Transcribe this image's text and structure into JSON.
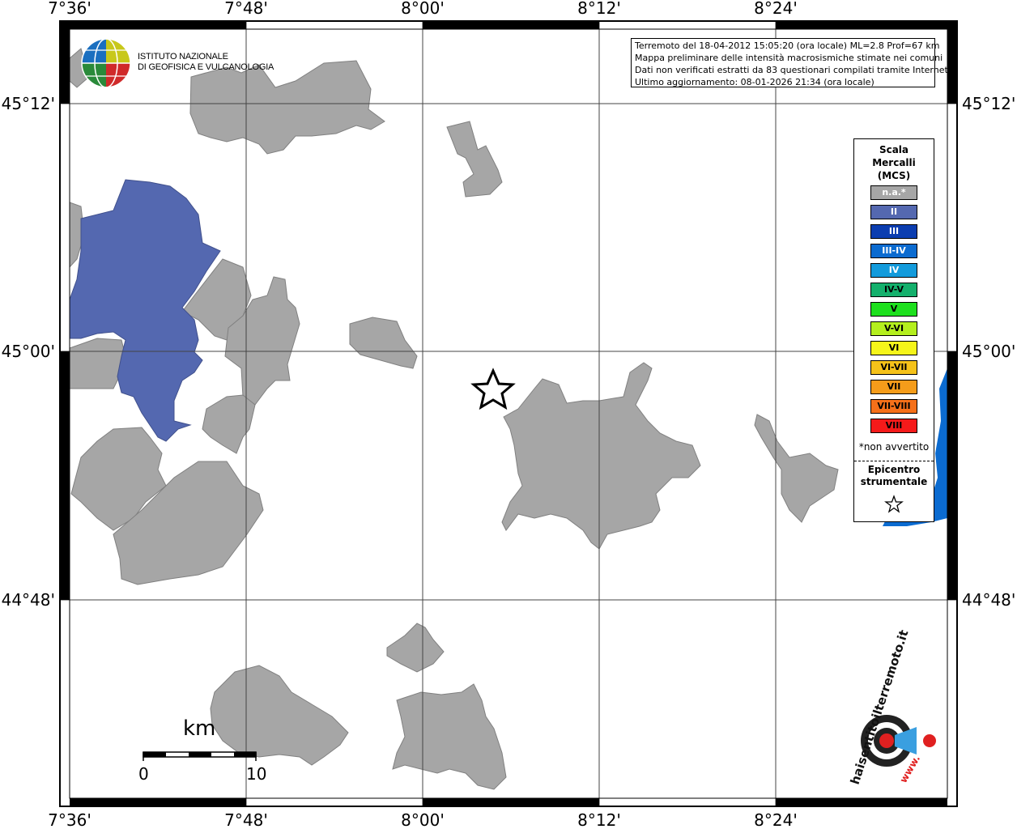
{
  "ticks": {
    "lon": [
      "7°36'",
      "7°48'",
      "8°00'",
      "8°12'",
      "8°24'"
    ],
    "lat": [
      "45°12'",
      "45°00'",
      "44°48'"
    ]
  },
  "info": {
    "line1": "Terremoto del 18-04-2012 15:05:20 (ora locale) ML=2.8 Prof=67 km",
    "line2": "Mappa preliminare delle intensità macrosismiche stimate nei comuni",
    "line3": "Dati non verificati estratti da 83 questionari compilati tramite Internet.",
    "line4": "Ultimo aggiornamento: 08-01-2026 21:34 (ora locale)"
  },
  "logo": {
    "ingv_line1": "ISTITUTO NAZIONALE",
    "ingv_line2": "DI GEOFISICA E VULCANOLOGIA",
    "hsit_text": "haisentitoilterremoto.it",
    "hsit_url": "www."
  },
  "legend": {
    "title_line1": "Scala",
    "title_line2": "Mercalli",
    "title_line3": "(MCS)",
    "items": [
      {
        "label": "n.a.*",
        "color": "#a6a6a6"
      },
      {
        "label": "II",
        "color": "#5468b0"
      },
      {
        "label": "III",
        "color": "#0b3db0"
      },
      {
        "label": "III-IV",
        "color": "#0b6bd0"
      },
      {
        "label": "IV",
        "color": "#139bdc"
      },
      {
        "label": "IV-V",
        "color": "#14b06c"
      },
      {
        "label": "V",
        "color": "#1ee01e"
      },
      {
        "label": "V-VI",
        "color": "#b4ef1e"
      },
      {
        "label": "VI",
        "color": "#f5f51a"
      },
      {
        "label": "VI-VII",
        "color": "#f5c21a"
      },
      {
        "label": "VII",
        "color": "#f59c1a"
      },
      {
        "label": "VII-VIII",
        "color": "#f5701a"
      },
      {
        "label": "VIII",
        "color": "#f51a1a"
      }
    ],
    "note": "*non avvertito",
    "epicenter_line1": "Epicentro",
    "epicenter_line2": "strumentale"
  },
  "scale_bar": {
    "unit": "km",
    "min": "0",
    "max": "10"
  }
}
